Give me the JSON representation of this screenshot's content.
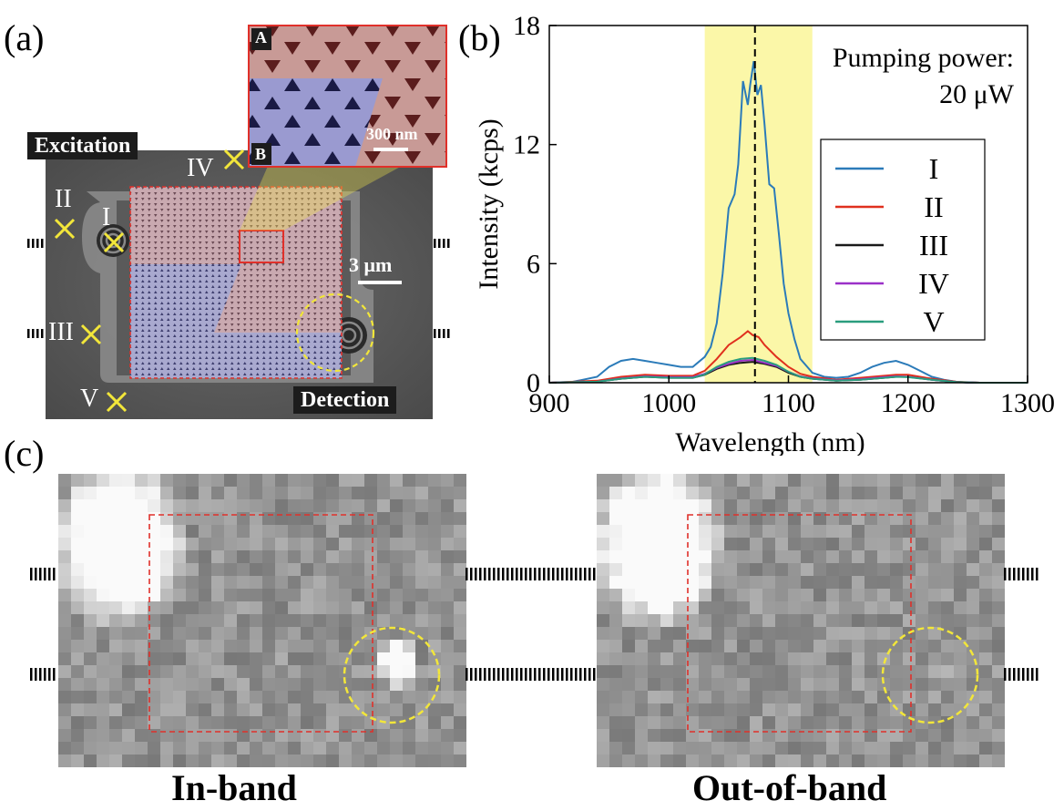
{
  "panel_labels": {
    "a": "(a)",
    "b": "(b)",
    "c": "(c)"
  },
  "panel_a": {
    "excitation_label": "Excitation",
    "detection_label": "Detection",
    "scale_bar": "3 μm",
    "points": [
      "I",
      "II",
      "III",
      "IV",
      "V"
    ],
    "inset": {
      "label_a": "A",
      "label_b": "B",
      "scale_bar": "300 nm"
    }
  },
  "chart_data": {
    "type": "line",
    "title": "",
    "xlabel": "Wavelength (nm)",
    "ylabel": "Intensity (kcps)",
    "xlim": [
      900,
      1300
    ],
    "ylim": [
      0,
      18
    ],
    "xticks": [
      900,
      1000,
      1100,
      1200,
      1300
    ],
    "yticks": [
      0,
      6,
      12,
      18
    ],
    "annotation_line1": "Pumping power:",
    "annotation_line2": "20 μW",
    "band_range": [
      1030,
      1120
    ],
    "dashed_line_x": 1072,
    "legend_position": "right",
    "series": [
      {
        "name": "I",
        "color": "#2b7bb9",
        "x": [
          900,
          920,
          940,
          950,
          960,
          970,
          980,
          990,
          1000,
          1010,
          1020,
          1030,
          1035,
          1040,
          1045,
          1050,
          1055,
          1058,
          1062,
          1066,
          1068,
          1071,
          1074,
          1077,
          1080,
          1084,
          1088,
          1092,
          1096,
          1100,
          1105,
          1110,
          1120,
          1130,
          1140,
          1150,
          1160,
          1170,
          1180,
          1190,
          1200,
          1210,
          1220,
          1230,
          1240,
          1250,
          1260,
          1280,
          1300
        ],
        "y": [
          0,
          0.05,
          0.3,
          0.8,
          1.1,
          1.2,
          1.1,
          1.0,
          0.9,
          0.8,
          0.8,
          1.3,
          1.8,
          3.0,
          5.5,
          8.8,
          9.5,
          11.0,
          15.2,
          14.0,
          15.0,
          16.2,
          14.5,
          15.0,
          13.0,
          10.0,
          9.8,
          7.5,
          5.0,
          3.5,
          2.2,
          1.2,
          0.5,
          0.3,
          0.25,
          0.3,
          0.5,
          0.8,
          1.0,
          1.1,
          0.9,
          0.6,
          0.3,
          0.15,
          0.05,
          0,
          0,
          0,
          0
        ]
      },
      {
        "name": "II",
        "color": "#e0301e",
        "x": [
          900,
          940,
          960,
          980,
          1000,
          1020,
          1030,
          1040,
          1050,
          1060,
          1066,
          1070,
          1075,
          1080,
          1090,
          1100,
          1110,
          1120,
          1140,
          1160,
          1180,
          1190,
          1200,
          1220,
          1240,
          1260,
          1300
        ],
        "y": [
          0,
          0.1,
          0.3,
          0.4,
          0.35,
          0.35,
          0.6,
          1.2,
          1.9,
          2.3,
          2.6,
          2.4,
          2.3,
          1.9,
          1.3,
          0.8,
          0.45,
          0.3,
          0.15,
          0.25,
          0.35,
          0.4,
          0.4,
          0.2,
          0.05,
          0,
          0
        ]
      },
      {
        "name": "III",
        "color": "#1a1a1a",
        "x": [
          900,
          940,
          960,
          980,
          1000,
          1020,
          1030,
          1040,
          1050,
          1060,
          1070,
          1080,
          1090,
          1100,
          1110,
          1120,
          1140,
          1160,
          1180,
          1190,
          1200,
          1220,
          1240,
          1260,
          1300
        ],
        "y": [
          0,
          0.05,
          0.2,
          0.3,
          0.25,
          0.25,
          0.4,
          0.7,
          0.9,
          1.0,
          1.05,
          0.95,
          0.8,
          0.5,
          0.3,
          0.2,
          0.1,
          0.15,
          0.25,
          0.3,
          0.3,
          0.15,
          0.03,
          0,
          0
        ]
      },
      {
        "name": "IV",
        "color": "#9b30c8",
        "x": [
          900,
          940,
          960,
          980,
          1000,
          1020,
          1030,
          1040,
          1050,
          1060,
          1070,
          1080,
          1090,
          1100,
          1110,
          1120,
          1140,
          1160,
          1180,
          1190,
          1200,
          1220,
          1240,
          1260,
          1300
        ],
        "y": [
          0,
          0.05,
          0.22,
          0.32,
          0.28,
          0.28,
          0.45,
          0.75,
          0.95,
          1.1,
          1.15,
          1.0,
          0.85,
          0.55,
          0.32,
          0.22,
          0.12,
          0.18,
          0.28,
          0.32,
          0.3,
          0.15,
          0.03,
          0,
          0
        ]
      },
      {
        "name": "V",
        "color": "#2a9d7e",
        "x": [
          900,
          940,
          960,
          980,
          1000,
          1020,
          1030,
          1040,
          1050,
          1060,
          1070,
          1080,
          1090,
          1100,
          1110,
          1120,
          1140,
          1160,
          1180,
          1190,
          1200,
          1220,
          1240,
          1260,
          1300
        ],
        "y": [
          0,
          0.05,
          0.2,
          0.3,
          0.25,
          0.25,
          0.42,
          0.8,
          1.05,
          1.2,
          1.25,
          1.1,
          0.9,
          0.55,
          0.3,
          0.2,
          0.1,
          0.15,
          0.25,
          0.3,
          0.28,
          0.15,
          0.03,
          0,
          0
        ]
      }
    ]
  },
  "panel_c": {
    "left_caption": "In-band",
    "right_caption": "Out-of-band"
  },
  "colors": {
    "band": "#fbf7a8",
    "roi": "#e0302a",
    "circle": "#f2e63a",
    "marker": "#f2e63a"
  }
}
